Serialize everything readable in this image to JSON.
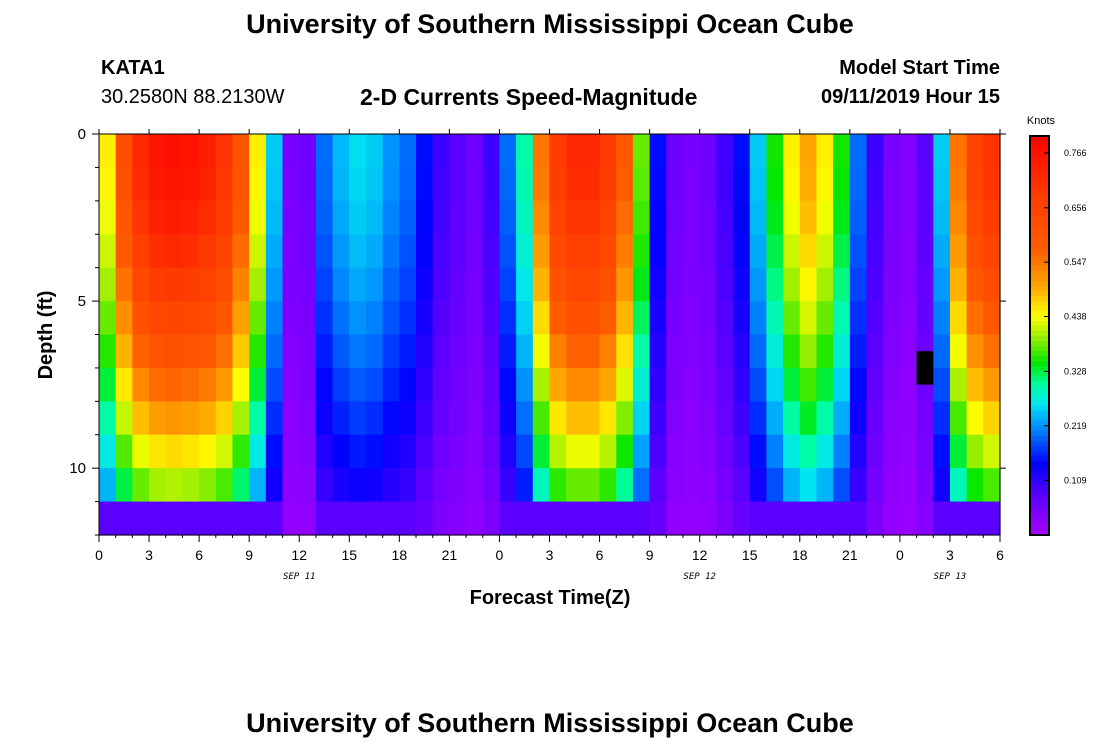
{
  "header": {
    "title": "University of Southern Mississippi Ocean Cube",
    "station_id": "KATA1",
    "coordinates": "30.2580N 88.2130W",
    "subtitle": "2-D Currents Speed-Magnitude",
    "model_start_label": "Model Start Time",
    "model_start_value": "09/11/2019 Hour 15"
  },
  "footer": {
    "title": "University of Southern Mississippi Ocean Cube"
  },
  "chart_data": {
    "type": "heatmap",
    "title": "2-D Currents Speed-Magnitude",
    "xlabel": "Forecast Time(Z)",
    "ylabel": "Depth (ft)",
    "x_unit": "forecast hours from 09/11/2019 00Z",
    "xlim": [
      0,
      54
    ],
    "ylim": [
      0,
      12
    ],
    "y_inverted": true,
    "x_tick_values": [
      0,
      3,
      6,
      9,
      12,
      15,
      18,
      21,
      24,
      27,
      30,
      33,
      36,
      39,
      42,
      45,
      48,
      51,
      54
    ],
    "x_tick_labels": [
      "0",
      "3",
      "6",
      "9",
      "12",
      "15",
      "18",
      "21",
      "0",
      "3",
      "6",
      "9",
      "12",
      "15",
      "18",
      "21",
      "0",
      "3",
      "6"
    ],
    "day_labels": [
      {
        "hour": 12,
        "label": "SEP 11"
      },
      {
        "hour": 36,
        "label": "SEP 12"
      },
      {
        "hour": 51,
        "label": "SEP 13"
      }
    ],
    "y_tick_values": [
      0,
      5,
      10
    ],
    "y_tick_labels": [
      "0",
      "5",
      "10"
    ],
    "colorbar": {
      "unit": "Knots",
      "min": 0.0,
      "max": 0.8,
      "tick_values": [
        0.109,
        0.219,
        0.328,
        0.438,
        0.547,
        0.656,
        0.766
      ],
      "tick_labels": [
        "0.109",
        "0.219",
        "0.328",
        "0.438",
        "0.547",
        "0.656",
        "0.766"
      ]
    },
    "grid": {
      "x_hours": [
        0,
        1,
        2,
        3,
        4,
        5,
        6,
        7,
        8,
        9,
        10,
        11,
        12,
        13,
        14,
        15,
        16,
        17,
        18,
        19,
        20,
        21,
        22,
        23,
        24,
        25,
        26,
        27,
        28,
        29,
        30,
        31,
        32,
        33,
        34,
        35,
        36,
        37,
        38,
        39,
        40,
        41,
        42,
        43,
        44,
        45,
        46,
        47,
        48,
        49,
        50,
        51,
        52,
        53
      ],
      "depth_levels": [
        0.5,
        1.5,
        2.5,
        3.5,
        4.5,
        5.5,
        6.5,
        7.5,
        8.5,
        9.5,
        10.5,
        11.5
      ],
      "speed_profiles": {
        "comment": "surface speed (knots) per forecast hour; deeper levels decay toward the bottom",
        "surface": [
          0.45,
          0.62,
          0.72,
          0.76,
          0.77,
          0.76,
          0.74,
          0.7,
          0.6,
          0.45,
          0.25,
          0.05,
          0.06,
          0.2,
          0.24,
          0.26,
          0.25,
          0.22,
          0.2,
          0.15,
          0.1,
          0.08,
          0.06,
          0.1,
          0.2,
          0.3,
          0.55,
          0.68,
          0.72,
          0.72,
          0.68,
          0.58,
          0.38,
          0.15,
          0.06,
          0.05,
          0.06,
          0.1,
          0.15,
          0.25,
          0.35,
          0.45,
          0.5,
          0.45,
          0.35,
          0.2,
          0.1,
          0.05,
          0.04,
          0.08,
          0.25,
          0.55,
          0.66,
          0.7
        ]
      },
      "missing_cells": [
        {
          "hour": 49,
          "depth_from": 6.5,
          "depth_to": 7.5
        }
      ]
    }
  }
}
